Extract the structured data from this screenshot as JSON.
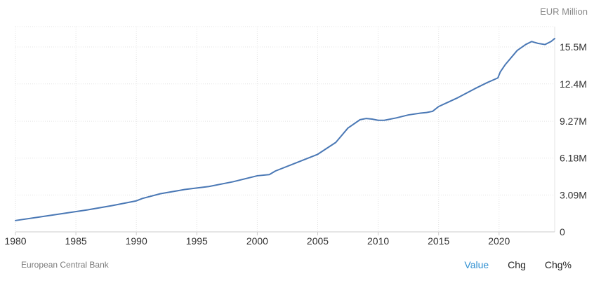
{
  "unit_label": "EUR Million",
  "source": "European Central Bank",
  "tabs": [
    {
      "label": "Value",
      "active": true
    },
    {
      "label": "Chg",
      "active": false
    },
    {
      "label": "Chg%",
      "active": false
    }
  ],
  "colors": {
    "line": "#4a78b5",
    "grid": "#e3e3e3",
    "axis": "#cccccc",
    "active_tab": "#2e8fd1"
  },
  "chart_data": {
    "type": "line",
    "title": "",
    "xlabel": "",
    "ylabel": "EUR Million",
    "xlim": [
      1980,
      2024.6
    ],
    "ylim": [
      0,
      17200000
    ],
    "x_ticks": [
      1980,
      1985,
      1990,
      1995,
      2000,
      2005,
      2010,
      2015,
      2020
    ],
    "x_tick_labels": [
      "1980",
      "1985",
      "1990",
      "1995",
      "2000",
      "2005",
      "2010",
      "2015",
      "2020"
    ],
    "y_ticks": [
      0,
      3090000,
      6180000,
      9270000,
      12400000,
      15500000
    ],
    "y_tick_labels": [
      "0",
      "3.09M",
      "6.18M",
      "9.27M",
      "12.4M",
      "15.5M"
    ],
    "y_axis_side": "right",
    "grid": true,
    "series": [
      {
        "name": "",
        "x": [
          1980,
          1982,
          1984,
          1986,
          1988,
          1990,
          1990.5,
          1992,
          1994,
          1996,
          1998,
          2000,
          2001,
          2001.5,
          2003,
          2005,
          2006.5,
          2007.5,
          2008.5,
          2009,
          2009.5,
          2010,
          2010.5,
          2011.5,
          2012.5,
          2013.5,
          2014,
          2014.5,
          2015,
          2016.5,
          2018,
          2019,
          2019.9,
          2020.1,
          2020.5,
          2021.5,
          2022.2,
          2022.7,
          2023.2,
          2023.8,
          2024.3,
          2024.6
        ],
        "y": [
          950000,
          1250000,
          1550000,
          1850000,
          2200000,
          2600000,
          2800000,
          3200000,
          3550000,
          3800000,
          4200000,
          4700000,
          4800000,
          5100000,
          5700000,
          6500000,
          7500000,
          8700000,
          9400000,
          9500000,
          9450000,
          9350000,
          9350000,
          9550000,
          9800000,
          9950000,
          10000000,
          10100000,
          10500000,
          11200000,
          12000000,
          12500000,
          12900000,
          13400000,
          14000000,
          15200000,
          15700000,
          15950000,
          15800000,
          15700000,
          15950000,
          16200000
        ]
      }
    ]
  }
}
